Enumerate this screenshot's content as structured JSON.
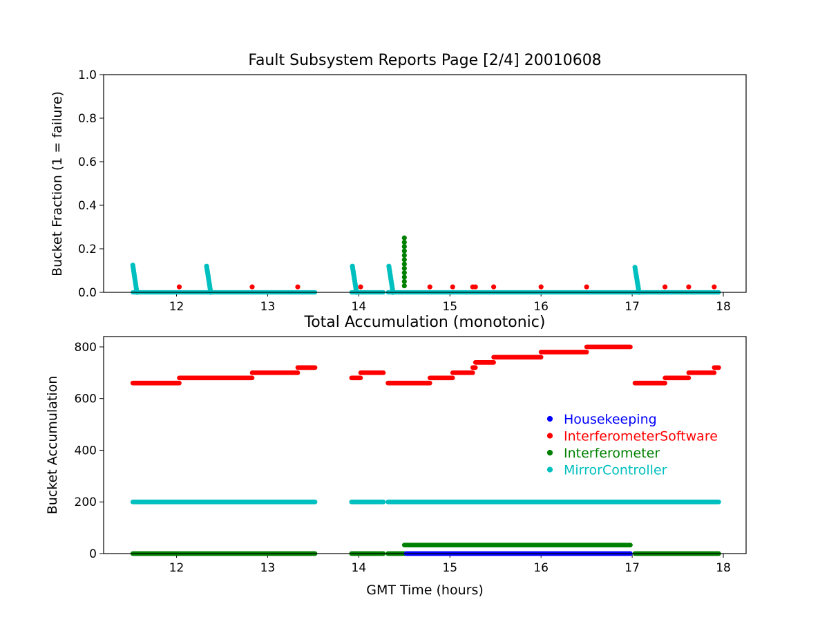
{
  "chart_data": [
    {
      "type": "scatter",
      "title": "Fault Subsystem Reports Page [2/4] 20010608",
      "xlabel": "",
      "ylabel": "Bucket Fraction (1 = failure)",
      "xlim": [
        11.2,
        18.25
      ],
      "ylim": [
        0,
        1.0
      ],
      "xticks": [
        12,
        13,
        14,
        15,
        16,
        17,
        18
      ],
      "yticks": [
        0.0,
        0.2,
        0.4,
        0.6,
        0.8,
        1.0
      ],
      "ytick_labels": [
        "0.0",
        "0.2",
        "0.4",
        "0.6",
        "0.8",
        "1.0"
      ],
      "grid": false,
      "series": [
        {
          "name": "InterferometerSoftware",
          "color": "#ff0000",
          "points": [
            [
              12.03,
              0.025
            ],
            [
              12.83,
              0.025
            ],
            [
              13.33,
              0.025
            ],
            [
              14.02,
              0.025
            ],
            [
              14.78,
              0.025
            ],
            [
              15.03,
              0.025
            ],
            [
              15.25,
              0.025
            ],
            [
              15.28,
              0.025
            ],
            [
              15.48,
              0.025
            ],
            [
              16.0,
              0.025
            ],
            [
              16.5,
              0.025
            ],
            [
              17.36,
              0.025
            ],
            [
              17.62,
              0.025
            ],
            [
              17.9,
              0.025
            ]
          ]
        },
        {
          "name": "Interferometer",
          "color": "#008000",
          "points": [
            [
              14.5,
              0.25
            ],
            [
              14.5,
              0.23
            ],
            [
              14.5,
              0.21
            ],
            [
              14.5,
              0.19
            ],
            [
              14.5,
              0.17
            ],
            [
              14.5,
              0.15
            ],
            [
              14.5,
              0.13
            ],
            [
              14.5,
              0.11
            ],
            [
              14.5,
              0.09
            ],
            [
              14.5,
              0.07
            ],
            [
              14.5,
              0.05
            ],
            [
              14.5,
              0.03
            ]
          ]
        },
        {
          "name": "MirrorController",
          "color": "#00bfbf",
          "spikes": [
            {
              "x": 11.52,
              "peak": 0.125
            },
            {
              "x": 12.33,
              "peak": 0.12
            },
            {
              "x": 13.93,
              "peak": 0.12
            },
            {
              "x": 14.33,
              "peak": 0.12
            },
            {
              "x": 17.03,
              "peak": 0.115
            }
          ],
          "baseline_segments": [
            [
              11.52,
              13.52
            ],
            [
              13.92,
              14.27
            ],
            [
              14.32,
              17.95
            ]
          ],
          "baseline_value": 0.0
        }
      ]
    },
    {
      "type": "scatter",
      "title": "Total Accumulation (monotonic)",
      "xlabel": "GMT Time (hours)",
      "ylabel": "Bucket Accumulation",
      "xlim": [
        11.2,
        18.25
      ],
      "ylim": [
        0,
        840
      ],
      "xticks": [
        12,
        13,
        14,
        15,
        16,
        17,
        18
      ],
      "yticks": [
        0,
        200,
        400,
        600,
        800
      ],
      "grid": false,
      "legend": "center-right",
      "series": [
        {
          "name": "Housekeeping",
          "color": "#0000ff",
          "segments": [
            [
              14.52,
              16.98,
              0
            ]
          ]
        },
        {
          "name": "InterferometerSoftware",
          "color": "#ff0000",
          "segments": [
            [
              11.52,
              12.03,
              660
            ],
            [
              12.03,
              12.83,
              680
            ],
            [
              12.83,
              13.33,
              700
            ],
            [
              13.33,
              13.52,
              720
            ],
            [
              13.92,
              14.02,
              680
            ],
            [
              14.02,
              14.27,
              700
            ],
            [
              14.32,
              14.78,
              660
            ],
            [
              14.78,
              15.03,
              680
            ],
            [
              15.03,
              15.25,
              700
            ],
            [
              15.25,
              15.28,
              720
            ],
            [
              15.28,
              15.48,
              740
            ],
            [
              15.48,
              16.0,
              760
            ],
            [
              16.0,
              16.5,
              780
            ],
            [
              16.5,
              16.98,
              800
            ],
            [
              17.03,
              17.36,
              660
            ],
            [
              17.36,
              17.62,
              680
            ],
            [
              17.62,
              17.9,
              700
            ],
            [
              17.9,
              17.95,
              720
            ]
          ]
        },
        {
          "name": "Interferometer",
          "color": "#008000",
          "segments": [
            [
              11.52,
              13.52,
              0
            ],
            [
              13.92,
              14.27,
              0
            ],
            [
              14.32,
              14.5,
              0
            ],
            [
              14.5,
              16.98,
              33
            ],
            [
              17.03,
              17.95,
              0
            ]
          ]
        },
        {
          "name": "MirrorController",
          "color": "#00bfbf",
          "segments": [
            [
              11.52,
              13.52,
              200
            ],
            [
              13.92,
              14.27,
              200
            ],
            [
              14.32,
              17.95,
              200
            ]
          ]
        }
      ]
    }
  ]
}
